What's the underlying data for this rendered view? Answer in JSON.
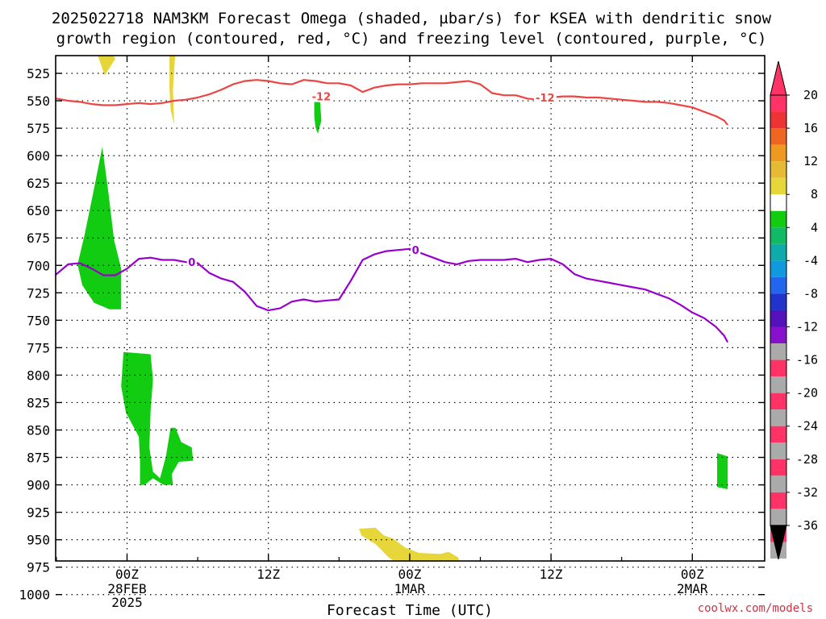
{
  "header": {
    "title_line1": "2025022718 NAM3KM Forecast Omega (shaded, µbar/s) for KSEA with dendritic snow",
    "title_line2": "growth region (contoured, red, °C) and freezing level (contoured, purple, °C)"
  },
  "footer": {
    "credit": "coolwx.com/models"
  },
  "chart_data": {
    "type": "time-height cross section",
    "xlabel": "Forecast Time (UTC)",
    "ylabel": "",
    "x_range_hours": [
      -9,
      51
    ],
    "y_range_hpa": [
      505,
      1010
    ],
    "y_ticks": [
      525,
      550,
      575,
      600,
      625,
      650,
      675,
      700,
      725,
      750,
      775,
      800,
      825,
      850,
      875,
      900,
      925,
      950,
      975,
      1000
    ],
    "x_ticks": [
      {
        "hour": 0,
        "label": "00Z",
        "sub1": "28FEB",
        "sub2": "2025"
      },
      {
        "hour": 12,
        "label": "12Z",
        "sub1": "",
        "sub2": ""
      },
      {
        "hour": 24,
        "label": "00Z",
        "sub1": "1MAR",
        "sub2": ""
      },
      {
        "hour": 36,
        "label": "12Z",
        "sub1": "",
        "sub2": ""
      },
      {
        "hour": 48,
        "label": "00Z",
        "sub1": "2MAR",
        "sub2": ""
      }
    ],
    "grid": true,
    "contours": [
      {
        "label": "-12",
        "color": "#ee4444",
        "label_positions": [
          [
            16.5,
            546
          ],
          [
            35.5,
            547
          ]
        ],
        "points": [
          [
            -9,
            549
          ],
          [
            -8,
            550
          ],
          [
            -7,
            550
          ],
          [
            -6,
            548
          ],
          [
            -5,
            550
          ],
          [
            -4,
            551
          ],
          [
            -3,
            553
          ],
          [
            -2,
            554
          ],
          [
            -1,
            554
          ],
          [
            0,
            553
          ],
          [
            1,
            552
          ],
          [
            2,
            553
          ],
          [
            3,
            552
          ],
          [
            4,
            550
          ],
          [
            5,
            549
          ],
          [
            6,
            547
          ],
          [
            7,
            544
          ],
          [
            8,
            540
          ],
          [
            9,
            535
          ],
          [
            10,
            532
          ],
          [
            11,
            531
          ],
          [
            12,
            532
          ],
          [
            13,
            534
          ],
          [
            14,
            535
          ],
          [
            15,
            531
          ],
          [
            16,
            532
          ],
          [
            17,
            534
          ],
          [
            18,
            534
          ],
          [
            19,
            536
          ],
          [
            20,
            542
          ],
          [
            21,
            538
          ],
          [
            22,
            536
          ],
          [
            23,
            535
          ],
          [
            24,
            535
          ],
          [
            25,
            534
          ],
          [
            26,
            534
          ],
          [
            27,
            534
          ],
          [
            28,
            533
          ],
          [
            29,
            532
          ],
          [
            30,
            535
          ],
          [
            31,
            543
          ],
          [
            32,
            545
          ],
          [
            33,
            545
          ],
          [
            34,
            548
          ],
          [
            35,
            549
          ],
          [
            36,
            547
          ],
          [
            37,
            546
          ],
          [
            38,
            546
          ],
          [
            39,
            547
          ],
          [
            40,
            547
          ],
          [
            41,
            548
          ],
          [
            42,
            549
          ],
          [
            43,
            550
          ],
          [
            44,
            551
          ],
          [
            45,
            551
          ],
          [
            46,
            552
          ],
          [
            47,
            554
          ],
          [
            48,
            556
          ],
          [
            49,
            560
          ],
          [
            50,
            564
          ],
          [
            50.7,
            568
          ],
          [
            51,
            572
          ]
        ]
      },
      {
        "label": "0",
        "color": "#9900cc",
        "label_positions": [
          [
            5.5,
            697
          ],
          [
            24.5,
            686
          ]
        ],
        "points": [
          [
            -9,
            717
          ],
          [
            -8,
            716
          ],
          [
            -7,
            714
          ],
          [
            -6,
            708
          ],
          [
            -5,
            699
          ],
          [
            -4,
            698
          ],
          [
            -3,
            703
          ],
          [
            -2,
            709
          ],
          [
            -1,
            709
          ],
          [
            0,
            703
          ],
          [
            1,
            694
          ],
          [
            2,
            693
          ],
          [
            3,
            695
          ],
          [
            4,
            695
          ],
          [
            5,
            697
          ],
          [
            6,
            698
          ],
          [
            7,
            707
          ],
          [
            8,
            712
          ],
          [
            9,
            715
          ],
          [
            10,
            724
          ],
          [
            11,
            737
          ],
          [
            12,
            741
          ],
          [
            13,
            739
          ],
          [
            14,
            733
          ],
          [
            15,
            731
          ],
          [
            16,
            733
          ],
          [
            17,
            732
          ],
          [
            18,
            731
          ],
          [
            19,
            714
          ],
          [
            20,
            695
          ],
          [
            21,
            690
          ],
          [
            22,
            687
          ],
          [
            23,
            686
          ],
          [
            24,
            685
          ],
          [
            25,
            689
          ],
          [
            26,
            693
          ],
          [
            27,
            697
          ],
          [
            28,
            699
          ],
          [
            29,
            696
          ],
          [
            30,
            695
          ],
          [
            31,
            695
          ],
          [
            32,
            695
          ],
          [
            33,
            694
          ],
          [
            34,
            697
          ],
          [
            35,
            695
          ],
          [
            36,
            694
          ],
          [
            37,
            699
          ],
          [
            38,
            708
          ],
          [
            39,
            712
          ],
          [
            40,
            714
          ],
          [
            41,
            716
          ],
          [
            42,
            718
          ],
          [
            43,
            720
          ],
          [
            44,
            722
          ],
          [
            45,
            726
          ],
          [
            46,
            730
          ],
          [
            47,
            736
          ],
          [
            48,
            743
          ],
          [
            49,
            748
          ],
          [
            50,
            756
          ],
          [
            50.7,
            764
          ],
          [
            51,
            770
          ]
        ]
      }
    ],
    "omega_regions": [
      {
        "value_band": "4 to 8",
        "color": "#e6d63a",
        "points": [
          [
            -2.6,
            505
          ],
          [
            -1.3,
            505
          ],
          [
            -1.0,
            512
          ],
          [
            -1.6,
            522
          ],
          [
            -1.9,
            527
          ]
        ]
      },
      {
        "value_band": "4 to 8",
        "color": "#e6d63a",
        "points": [
          [
            3.6,
            505
          ],
          [
            4.1,
            505
          ],
          [
            3.9,
            540
          ],
          [
            4.0,
            572
          ],
          [
            3.7,
            558
          ],
          [
            3.6,
            540
          ]
        ]
      },
      {
        "value_band": "-8 to -4",
        "color": "#11cc11",
        "points": [
          [
            15.9,
            551
          ],
          [
            16.2,
            546
          ],
          [
            16.4,
            552
          ],
          [
            16.5,
            568
          ],
          [
            16.2,
            580
          ],
          [
            16.0,
            574
          ],
          [
            15.9,
            564
          ]
        ]
      },
      {
        "value_band": "-8 to -4",
        "color": "#11cc11",
        "points": [
          [
            -4.2,
            699
          ],
          [
            -3.6,
            672
          ],
          [
            -2.8,
            630
          ],
          [
            -2.1,
            592
          ],
          [
            -1.6,
            632
          ],
          [
            -1.1,
            677
          ],
          [
            -0.5,
            703
          ],
          [
            -0.5,
            740
          ],
          [
            -1.5,
            740
          ],
          [
            -2.8,
            734
          ],
          [
            -3.8,
            718
          ]
        ]
      },
      {
        "value_band": "-8 to -4",
        "color": "#11cc11",
        "points": [
          [
            -0.3,
            779
          ],
          [
            2.0,
            781
          ],
          [
            2.2,
            804
          ],
          [
            2.0,
            832
          ],
          [
            1.9,
            866
          ],
          [
            2.2,
            888
          ],
          [
            2.8,
            894
          ],
          [
            3.3,
            874
          ],
          [
            3.7,
            848
          ],
          [
            4.1,
            848
          ],
          [
            4.6,
            861
          ],
          [
            5.5,
            866
          ],
          [
            5.6,
            878
          ],
          [
            4.4,
            879
          ],
          [
            3.8,
            890
          ],
          [
            3.9,
            900
          ],
          [
            3.1,
            900
          ],
          [
            2.2,
            894
          ],
          [
            1.5,
            900
          ],
          [
            1.1,
            900
          ],
          [
            1.1,
            878
          ],
          [
            1.0,
            856
          ],
          [
            -0.1,
            834
          ],
          [
            -0.5,
            810
          ],
          [
            -0.4,
            794
          ]
        ]
      },
      {
        "value_band": "4 to 8",
        "color": "#e6d63a",
        "points": [
          [
            -9,
            812
          ],
          [
            -8.7,
            830
          ],
          [
            -8.1,
            848
          ],
          [
            -7.4,
            849
          ],
          [
            -7.2,
            878
          ],
          [
            -7.4,
            900
          ],
          [
            -8.4,
            900
          ],
          [
            -9,
            899
          ]
        ]
      },
      {
        "value_band": "-8 to -4",
        "color": "#11cc11",
        "points": [
          [
            50.1,
            871
          ],
          [
            51,
            874
          ],
          [
            51,
            904
          ],
          [
            50.1,
            902
          ],
          [
            50.1,
            888
          ]
        ]
      },
      {
        "value_band": "4 to 8",
        "color": "#e6d63a",
        "points": [
          [
            19.7,
            940
          ],
          [
            21.1,
            939
          ],
          [
            21.8,
            946
          ],
          [
            22.6,
            949
          ],
          [
            23.6,
            957
          ],
          [
            24.8,
            962
          ],
          [
            26.6,
            963
          ],
          [
            27.3,
            961
          ],
          [
            28.1,
            966
          ],
          [
            28.4,
            975
          ],
          [
            27.1,
            978
          ],
          [
            25.0,
            977
          ],
          [
            23.3,
            974
          ],
          [
            22.2,
            966
          ],
          [
            21.1,
            954
          ],
          [
            19.9,
            946
          ]
        ]
      }
    ],
    "terrain": {
      "color": "#a0522d",
      "points": [
        [
          -9,
          1003
        ],
        [
          -7,
          1004
        ],
        [
          -5,
          1003
        ],
        [
          0,
          1003
        ],
        [
          5,
          1003
        ],
        [
          10,
          1003
        ],
        [
          15,
          1003
        ],
        [
          17,
          1003
        ],
        [
          18,
          1002
        ],
        [
          20,
          1001
        ],
        [
          22,
          1001
        ],
        [
          24,
          1000
        ],
        [
          26,
          1000
        ],
        [
          28,
          1000
        ],
        [
          30,
          999
        ],
        [
          35,
          999
        ],
        [
          40,
          999
        ],
        [
          45,
          999
        ],
        [
          46,
          998
        ],
        [
          47,
          997
        ],
        [
          48,
          997
        ],
        [
          49,
          997
        ],
        [
          50,
          998
        ],
        [
          51,
          999
        ]
      ]
    },
    "colorbar": {
      "labels": [
        "20",
        "16",
        "12",
        "8",
        "4",
        "-4",
        "-8",
        "-12",
        "-16",
        "-20",
        "-24",
        "-28",
        "-32",
        "-36"
      ],
      "colors": [
        "#ff3366",
        "#ee3333",
        "#ee6622",
        "#ee9922",
        "#e6bb33",
        "#e6d63a",
        "#ffffff",
        "#11cc11",
        "#11bb66",
        "#11aaaa",
        "#1199dd",
        "#2266ee",
        "#2233cc",
        "#5511bb",
        "#8811cc",
        "#aaaaaa"
      ]
    }
  }
}
